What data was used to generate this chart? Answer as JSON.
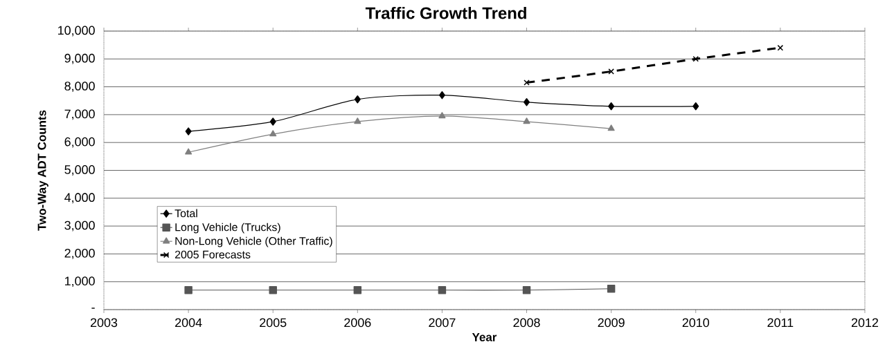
{
  "chart_data": {
    "type": "line",
    "title": "Traffic Growth Trend",
    "xlabel": "Year",
    "ylabel": "Two-Way ADT Counts",
    "x": [
      2004,
      2005,
      2006,
      2007,
      2008,
      2009,
      2010
    ],
    "series": [
      {
        "name": "Total",
        "color": "#000000",
        "marker": "diamond",
        "line_style": "solid",
        "values": [
          6400,
          6750,
          7550,
          7700,
          7450,
          7300,
          7300
        ]
      },
      {
        "name": "Long Vehicle (Trucks)",
        "color": "#555555",
        "marker": "square",
        "line_style": "solid",
        "values": [
          700,
          700,
          700,
          700,
          700,
          750,
          null
        ]
      },
      {
        "name": "Non-Long Vehicle (Other Traffic)",
        "color": "#7f7f7f",
        "marker": "triangle",
        "line_style": "solid",
        "values": [
          5650,
          6300,
          6750,
          6950,
          6750,
          6500,
          null
        ]
      },
      {
        "name": "2005 Forecasts",
        "color": "#000000",
        "marker": "cross",
        "line_style": "dashed",
        "x": [
          2008,
          2009,
          2010,
          2011
        ],
        "values": [
          8150,
          8550,
          9000,
          9400
        ]
      }
    ],
    "xlim": [
      2003,
      2012
    ],
    "xticks": [
      2003,
      2004,
      2005,
      2006,
      2007,
      2008,
      2009,
      2010,
      2011,
      2012
    ],
    "ylim": [
      0,
      10000
    ],
    "yticks": [
      {
        "value": 0,
        "label": "-"
      },
      {
        "value": 1000,
        "label": "1,000"
      },
      {
        "value": 2000,
        "label": "2,000"
      },
      {
        "value": 3000,
        "label": "3,000"
      },
      {
        "value": 4000,
        "label": "4,000"
      },
      {
        "value": 5000,
        "label": "5,000"
      },
      {
        "value": 6000,
        "label": "6,000"
      },
      {
        "value": 7000,
        "label": "7,000"
      },
      {
        "value": 8000,
        "label": "8,000"
      },
      {
        "value": 9000,
        "label": "9,000"
      },
      {
        "value": 10000,
        "label": "10,000"
      }
    ],
    "grid": "y",
    "legend": "bottom left"
  }
}
